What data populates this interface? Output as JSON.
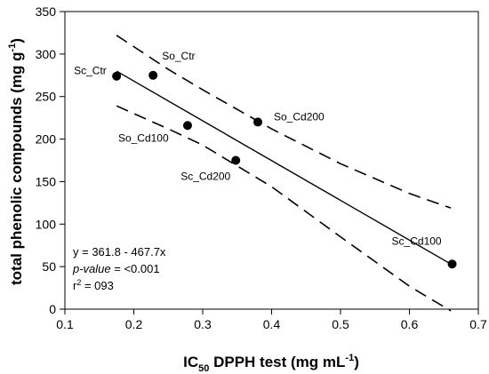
{
  "chart_data": {
    "type": "scatter",
    "xlabel": {
      "main": "IC",
      "sub": "50",
      "rest": " DPPH test (mg mL",
      "sup": "-1",
      "close": ")"
    },
    "ylabel": {
      "main": "total phenolic compounds (mg g",
      "sup": "-1",
      "close": ")"
    },
    "xlim": [
      0.1,
      0.7
    ],
    "ylim": [
      0,
      350
    ],
    "xticks": [
      0.1,
      0.2,
      0.3,
      0.4,
      0.5,
      0.6,
      0.7
    ],
    "xtick_labels": [
      "0.1",
      "0.2",
      "0.3",
      "0.4",
      "0.5",
      "0.6",
      "0.7"
    ],
    "yticks": [
      0,
      50,
      100,
      150,
      200,
      250,
      300,
      350
    ],
    "ytick_labels": [
      "0",
      "50",
      "100",
      "150",
      "200",
      "250",
      "300",
      "350"
    ],
    "points": [
      {
        "label": "Sc_Ctr",
        "x": 0.175,
        "y": 274
      },
      {
        "label": "So_Ctr",
        "x": 0.228,
        "y": 275
      },
      {
        "label": "So_Cd100",
        "x": 0.278,
        "y": 216
      },
      {
        "label": "Sc_Cd200",
        "x": 0.348,
        "y": 175
      },
      {
        "label": "So_Cd200",
        "x": 0.38,
        "y": 220
      },
      {
        "label": "Sc_Cd100",
        "x": 0.662,
        "y": 53
      }
    ],
    "regression": {
      "intercept": 361.8,
      "slope": -467.7,
      "x_range": [
        0.175,
        0.662
      ]
    },
    "confidence_upper": [
      [
        0.175,
        322
      ],
      [
        0.25,
        282
      ],
      [
        0.3,
        258
      ],
      [
        0.4,
        212
      ],
      [
        0.5,
        171
      ],
      [
        0.6,
        136
      ],
      [
        0.66,
        119
      ]
    ],
    "confidence_lower": [
      [
        0.175,
        239
      ],
      [
        0.25,
        212
      ],
      [
        0.3,
        193
      ],
      [
        0.4,
        144
      ],
      [
        0.5,
        85
      ],
      [
        0.6,
        27
      ],
      [
        0.66,
        -2
      ]
    ],
    "annotations": {
      "equation": "y = 361.8 - 467.7x",
      "pvalue_label": "p-value",
      "pvalue_rest": " = <0.001",
      "r2_label": "r",
      "r2_sup": "2",
      "r2_rest": " = 093"
    }
  }
}
